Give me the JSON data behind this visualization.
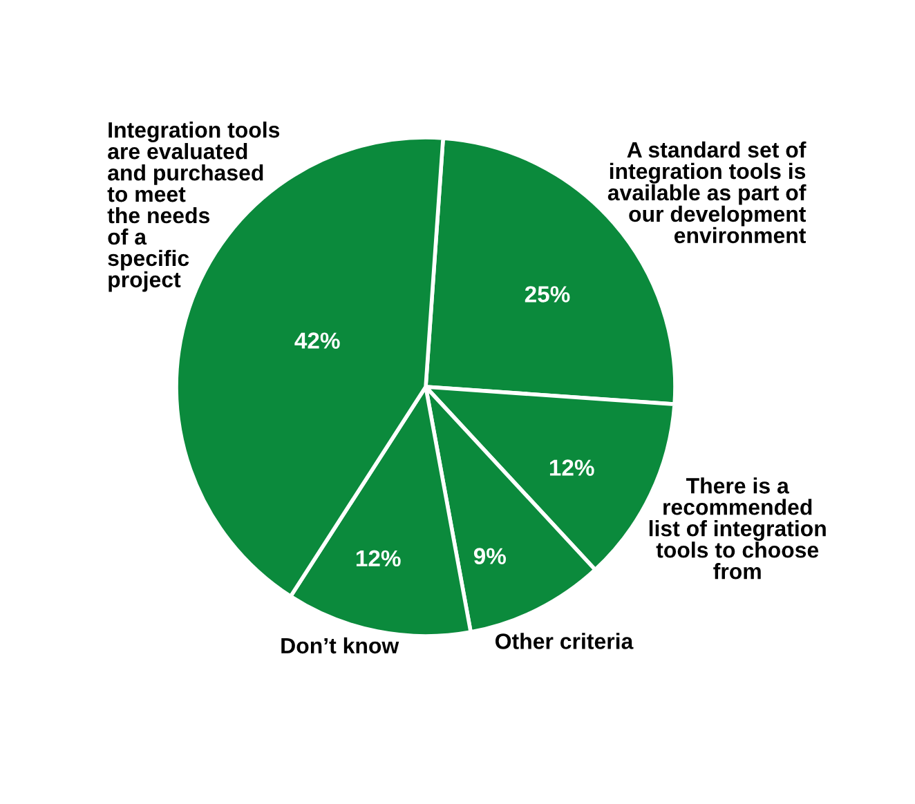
{
  "chart_data": {
    "type": "pie",
    "categories": [
      "A standard set of\nintegration tools is\navailable as part of\nour development\nenvironment",
      "There is a\nrecommended\nlist of integration\ntools to choose\nfrom",
      "Other criteria",
      "Don’t know",
      "Integration tools\nare evaluated\nand purchased\nto meet\nthe needs\nof a\nspecific\nproject"
    ],
    "values": [
      25,
      12,
      9,
      12,
      42
    ],
    "colors": [
      "#0b8a3c",
      "#0b8a3c",
      "#0b8a3c",
      "#0b8a3c",
      "#0b8a3c"
    ],
    "value_labels": [
      "25%",
      "12%",
      "9%",
      "12%",
      "42%"
    ]
  }
}
